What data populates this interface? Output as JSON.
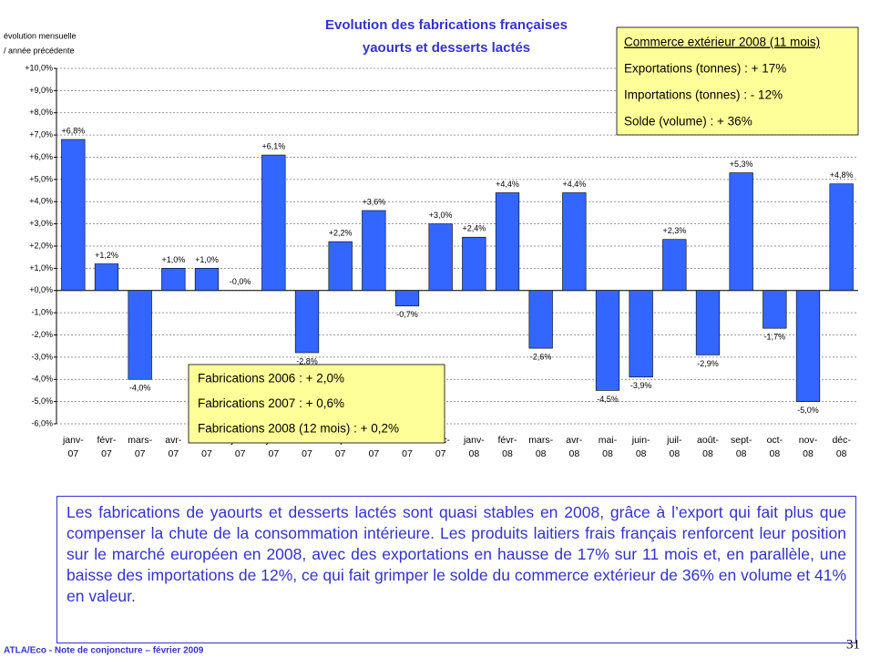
{
  "chart_data": {
    "type": "bar",
    "title": [
      "Evolution des fabrications françaises",
      "yaourts et desserts lactés"
    ],
    "y_axis_label": [
      "évolution mensuelle",
      "/ année précédente"
    ],
    "categories": [
      "janv-07",
      "févr-07",
      "mars-07",
      "avr-07",
      "mai-07",
      "juin-07",
      "juil-07",
      "août-07",
      "sept-07",
      "oct-07",
      "nov-07",
      "déc-07",
      "janv-08",
      "févr-08",
      "mars-08",
      "avr-08",
      "mai-08",
      "juin-08",
      "juil-08",
      "août-08",
      "sept-08",
      "oct-08",
      "nov-08",
      "déc-08"
    ],
    "values": [
      6.8,
      1.2,
      -4.0,
      1.0,
      1.0,
      0,
      6.1,
      -2.8,
      2.2,
      3.6,
      -0.7,
      3.0,
      2.4,
      4.4,
      -2.6,
      4.4,
      -4.5,
      -3.9,
      2.3,
      -2.9,
      5.3,
      -1.7,
      -5.0,
      4.8
    ],
    "value_labels": [
      "+6,8%",
      "+1,2%",
      "-4,0%",
      "+1,0%",
      "+1,0%",
      "-0,0%",
      "+6,1%",
      "-2,8%",
      "+2,2%",
      "+3,6%",
      "-0,7%",
      "+3,0%",
      "+2,4%",
      "+4,4%",
      "-2,6%",
      "+4,4%",
      "-4,5%",
      "-3,9%",
      "+2,3%",
      "-2,9%",
      "+5,3%",
      "-1,7%",
      "-5,0%",
      "+4,8%"
    ],
    "color": "#3366ff",
    "ylim": [
      -6,
      10
    ],
    "yticks": [
      {
        "value": -6,
        "label": "-6,0%"
      },
      {
        "value": -5,
        "label": "-5,0%"
      },
      {
        "value": -4,
        "label": "-4,0%"
      },
      {
        "value": -3,
        "label": "-3,0%"
      },
      {
        "value": -2,
        "label": "-2,0%"
      },
      {
        "value": -1,
        "label": "-1,0%"
      },
      {
        "value": 0,
        "label": "+0,0%"
      },
      {
        "value": 1,
        "label": "+1,0%"
      },
      {
        "value": 2,
        "label": "+2,0%"
      },
      {
        "value": 3,
        "label": "+3,0%"
      },
      {
        "value": 4,
        "label": "+4,0%"
      },
      {
        "value": 5,
        "label": "+5,0%"
      },
      {
        "value": 6,
        "label": "+6,0%"
      },
      {
        "value": 7,
        "label": "+7,0%"
      },
      {
        "value": 8,
        "label": "+8,0%"
      },
      {
        "value": 9,
        "label": "+9,0%"
      },
      {
        "value": 10,
        "label": "+10,0%"
      }
    ],
    "grid": true
  },
  "trade_box": {
    "heading": "Commerce extérieur 2008 (11 mois)",
    "lines": [
      "Exportations (tonnes) :  + 17%",
      "Importations (tonnes) : - 12%",
      "Solde (volume) :  + 36%"
    ]
  },
  "production_box": {
    "lines": [
      "Fabrications 2006 : + 2,0%",
      "Fabrications 2007 : + 0,6%",
      "Fabrications 2008 (12 mois) : + 0,2%"
    ]
  },
  "paragraph": "Les fabrications de yaourts et desserts lactés sont quasi stables en 2008, grâce à l’export qui fait plus que compenser la chute de la consommation intérieure. Les produits laitiers frais français renforcent leur position sur le marché européen en 2008, avec des exportations en hausse de 17% sur 11 mois et, en parallèle, une baisse des importations de 12%, ce qui fait grimper le solde du commerce extérieur de 36% en volume et 41% en valeur.",
  "footer": "ATLA/Eco - Note de conjoncture –  février 2009",
  "page_number": "31"
}
